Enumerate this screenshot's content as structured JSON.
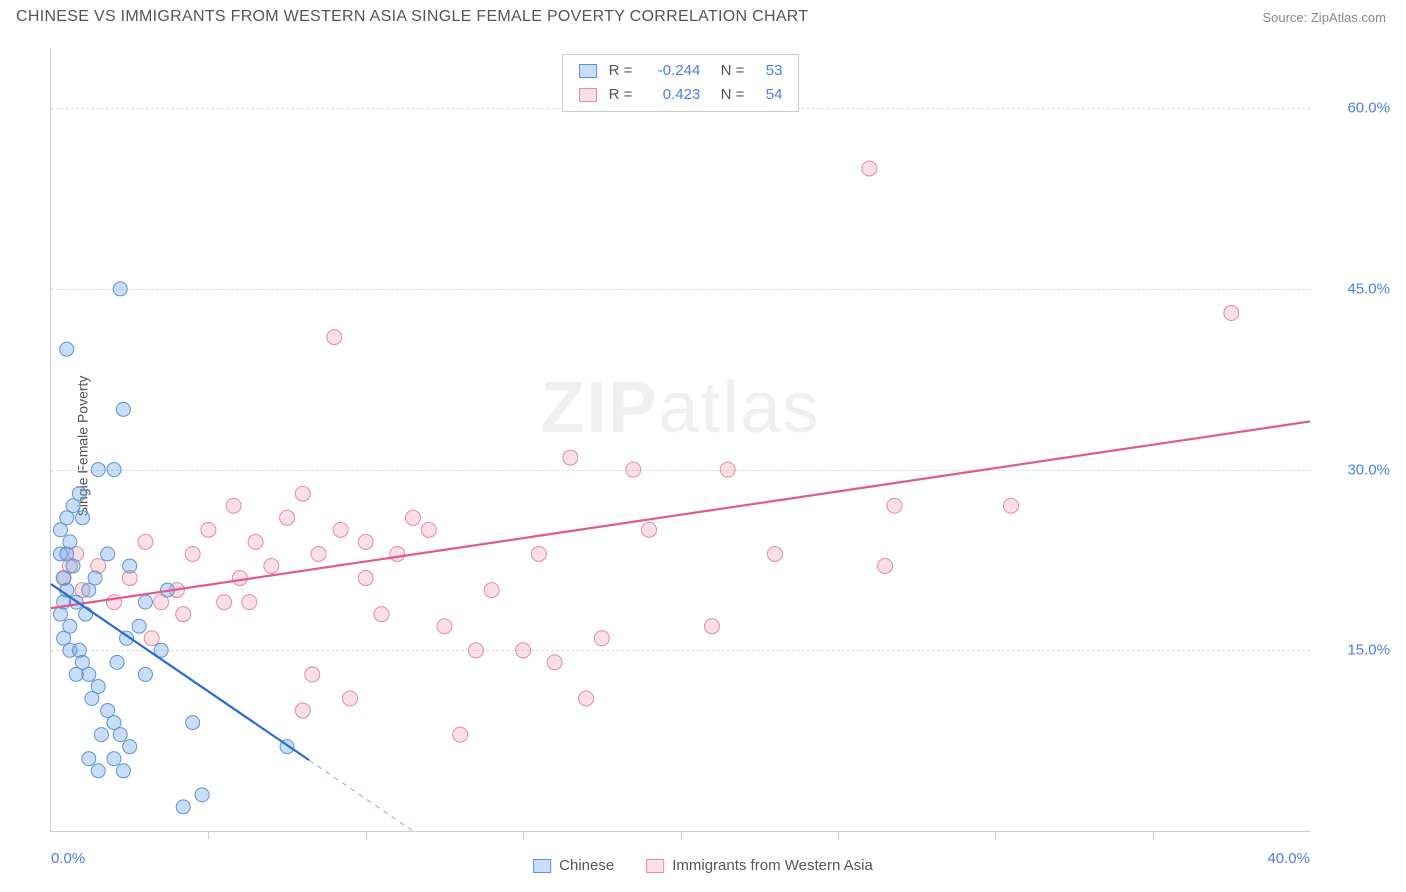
{
  "header": {
    "title": "CHINESE VS IMMIGRANTS FROM WESTERN ASIA SINGLE FEMALE POVERTY CORRELATION CHART",
    "source_prefix": "Source: ",
    "source_name": "ZipAtlas.com"
  },
  "watermark": {
    "left": "ZIP",
    "right": "atlas"
  },
  "chart": {
    "type": "scatter",
    "ylabel": "Single Female Poverty",
    "xlim": [
      0,
      40
    ],
    "ylim": [
      0,
      65
    ],
    "background_color": "#ffffff",
    "grid_color": "#dddddd",
    "axis_color": "#cccccc",
    "y_ticks": [
      {
        "value": 15,
        "label": "15.0%"
      },
      {
        "value": 30,
        "label": "30.0%"
      },
      {
        "value": 45,
        "label": "45.0%"
      },
      {
        "value": 60,
        "label": "60.0%"
      }
    ],
    "x_ticks_minor": [
      5,
      10,
      15,
      20,
      25,
      30,
      35
    ],
    "x_tick_labels": [
      {
        "value": 0,
        "label": "0.0%",
        "align": "left"
      },
      {
        "value": 40,
        "label": "40.0%",
        "align": "right"
      }
    ],
    "legend_top": [
      {
        "series": "blue",
        "r": "-0.244",
        "n": "53"
      },
      {
        "series": "pink",
        "r": "0.423",
        "n": "54"
      }
    ],
    "legend_bottom": [
      {
        "series": "blue",
        "label": "Chinese"
      },
      {
        "series": "pink",
        "label": "Immigrants from Western Asia"
      }
    ],
    "series": {
      "blue": {
        "fill": "rgba(100,160,230,0.35)",
        "stroke": "#5b93d6",
        "line_stroke": "#2d6bd1",
        "line_width": 2.2,
        "marker_radius": 7,
        "trend": {
          "x1": 0,
          "y1": 20.5,
          "x2": 11.5,
          "y2": 0,
          "dash_after_x": 8.2
        },
        "points": [
          [
            0.3,
            18
          ],
          [
            0.4,
            19
          ],
          [
            0.5,
            20
          ],
          [
            0.6,
            17
          ],
          [
            0.4,
            21
          ],
          [
            0.7,
            22
          ],
          [
            0.5,
            23
          ],
          [
            0.8,
            19
          ],
          [
            0.6,
            24
          ],
          [
            0.4,
            16
          ],
          [
            0.3,
            25
          ],
          [
            0.7,
            27
          ],
          [
            1.0,
            26
          ],
          [
            1.2,
            20
          ],
          [
            0.9,
            28
          ],
          [
            1.5,
            30
          ],
          [
            2.0,
            30
          ],
          [
            2.3,
            35
          ],
          [
            2.2,
            45
          ],
          [
            0.5,
            40
          ],
          [
            0.6,
            15
          ],
          [
            1.0,
            14
          ],
          [
            1.2,
            13
          ],
          [
            1.5,
            12
          ],
          [
            1.3,
            11
          ],
          [
            1.8,
            10
          ],
          [
            2.0,
            9
          ],
          [
            2.2,
            8
          ],
          [
            2.5,
            7
          ],
          [
            2.0,
            6
          ],
          [
            1.5,
            5
          ],
          [
            1.2,
            6
          ],
          [
            2.1,
            14
          ],
          [
            2.4,
            16
          ],
          [
            3.0,
            13
          ],
          [
            2.8,
            17
          ],
          [
            3.5,
            15
          ],
          [
            3.0,
            19
          ],
          [
            3.7,
            20
          ],
          [
            4.5,
            9
          ],
          [
            4.2,
            2
          ],
          [
            4.8,
            3
          ],
          [
            0.8,
            13
          ],
          [
            0.9,
            15
          ],
          [
            1.1,
            18
          ],
          [
            1.4,
            21
          ],
          [
            0.3,
            23
          ],
          [
            0.5,
            26
          ],
          [
            1.8,
            23
          ],
          [
            2.5,
            22
          ],
          [
            1.6,
            8
          ],
          [
            2.3,
            5
          ],
          [
            7.5,
            7
          ]
        ]
      },
      "pink": {
        "fill": "rgba(240,150,170,0.30)",
        "stroke": "#e48aa2",
        "line_stroke": "#e05a8a",
        "line_width": 2.2,
        "marker_radius": 7.5,
        "trend": {
          "x1": 0,
          "y1": 18.5,
          "x2": 40,
          "y2": 34
        },
        "points": [
          [
            0.4,
            21
          ],
          [
            0.6,
            22
          ],
          [
            0.8,
            23
          ],
          [
            1.0,
            20
          ],
          [
            1.5,
            22
          ],
          [
            2.0,
            19
          ],
          [
            2.5,
            21
          ],
          [
            3.0,
            24
          ],
          [
            3.5,
            19
          ],
          [
            4.0,
            20
          ],
          [
            4.5,
            23
          ],
          [
            5.0,
            25
          ],
          [
            5.5,
            19
          ],
          [
            6.0,
            21
          ],
          [
            6.5,
            24
          ],
          [
            7.0,
            22
          ],
          [
            7.5,
            26
          ],
          [
            8.0,
            28
          ],
          [
            8.5,
            23
          ],
          [
            9.0,
            41
          ],
          [
            9.2,
            25
          ],
          [
            10.0,
            24
          ],
          [
            10.5,
            18
          ],
          [
            11.0,
            23
          ],
          [
            12.0,
            25
          ],
          [
            12.5,
            17
          ],
          [
            13.0,
            8
          ],
          [
            13.5,
            15
          ],
          [
            14.0,
            20
          ],
          [
            15.0,
            15
          ],
          [
            15.5,
            23
          ],
          [
            16.0,
            14
          ],
          [
            16.5,
            31
          ],
          [
            17.0,
            11
          ],
          [
            17.5,
            16
          ],
          [
            18.5,
            30
          ],
          [
            19.0,
            25
          ],
          [
            21.0,
            17
          ],
          [
            21.5,
            30
          ],
          [
            23.0,
            23
          ],
          [
            26.5,
            22
          ],
          [
            26.8,
            27
          ],
          [
            26.0,
            55
          ],
          [
            30.5,
            27
          ],
          [
            37.5,
            43
          ],
          [
            8.0,
            10
          ],
          [
            9.5,
            11
          ],
          [
            8.3,
            13
          ],
          [
            4.2,
            18
          ],
          [
            3.2,
            16
          ],
          [
            11.5,
            26
          ],
          [
            5.8,
            27
          ],
          [
            6.3,
            19
          ],
          [
            10.0,
            21
          ]
        ]
      }
    },
    "label_color": "#4a7fe0",
    "text_color": "#555555",
    "title_fontsize": 16,
    "label_fontsize": 14,
    "tick_fontsize": 15
  }
}
